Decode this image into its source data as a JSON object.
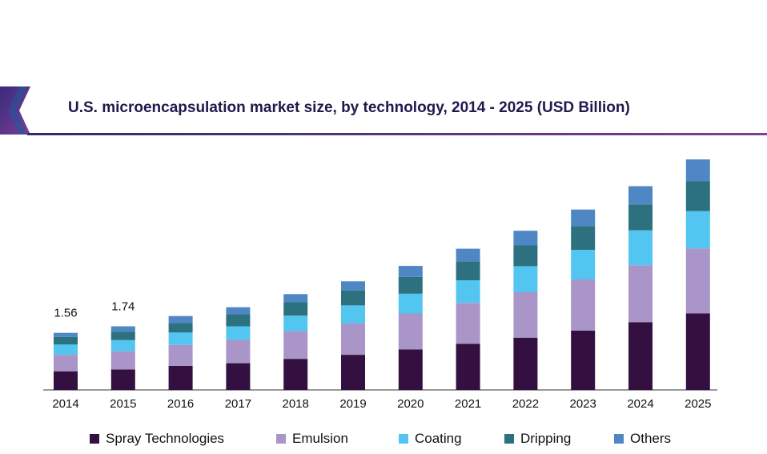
{
  "chart_data": {
    "type": "bar",
    "stacked": true,
    "title": "U.S. microencapsulation market size, by technology, 2014 - 2025 (USD Billion)",
    "xlabel": "",
    "ylabel": "",
    "categories": [
      "2014",
      "2015",
      "2016",
      "2017",
      "2018",
      "2019",
      "2020",
      "2021",
      "2022",
      "2023",
      "2024",
      "2025"
    ],
    "series": [
      {
        "name": "Spray Technologies",
        "color": "#33103f",
        "values": [
          0.51,
          0.56,
          0.66,
          0.73,
          0.85,
          0.96,
          1.11,
          1.26,
          1.43,
          1.62,
          1.85,
          2.09
        ]
      },
      {
        "name": "Emulsion",
        "color": "#a995c8",
        "values": [
          0.45,
          0.5,
          0.57,
          0.64,
          0.76,
          0.86,
          0.98,
          1.12,
          1.24,
          1.4,
          1.56,
          1.78
        ]
      },
      {
        "name": "Coating",
        "color": "#52c6f0",
        "values": [
          0.28,
          0.3,
          0.34,
          0.37,
          0.42,
          0.49,
          0.54,
          0.62,
          0.71,
          0.81,
          0.95,
          1.02
        ]
      },
      {
        "name": "Dripping",
        "color": "#2d7180",
        "values": [
          0.21,
          0.23,
          0.26,
          0.33,
          0.37,
          0.41,
          0.46,
          0.52,
          0.57,
          0.65,
          0.71,
          0.82
        ]
      },
      {
        "name": "Others",
        "color": "#4f87c5",
        "values": [
          0.11,
          0.15,
          0.19,
          0.19,
          0.22,
          0.25,
          0.3,
          0.34,
          0.4,
          0.45,
          0.5,
          0.59
        ]
      }
    ],
    "data_labels": [
      {
        "category": "2014",
        "text": "1.56"
      },
      {
        "category": "2015",
        "text": "1.74"
      }
    ],
    "ylim": [
      0,
      6.5
    ],
    "grid": false,
    "legend_position": "bottom"
  }
}
